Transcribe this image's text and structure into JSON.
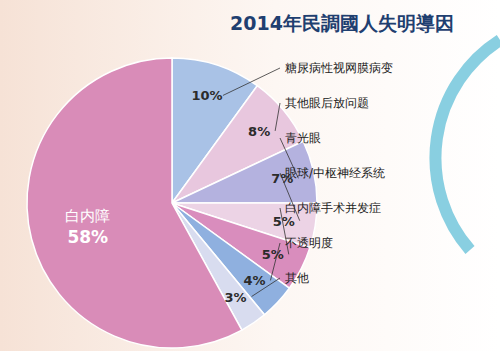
{
  "chart_data": {
    "type": "pie",
    "title": "2014年民調國人失明導因",
    "categories": [
      "糖尿病性视网膜病变",
      "其他眼后放问题",
      "青光眼",
      "眼球/中枢神经系统",
      "白内障手术并发症",
      "不透明度",
      "其他",
      "白内障"
    ],
    "values": [
      10,
      8,
      7,
      5,
      5,
      4,
      3,
      58
    ],
    "value_labels": [
      "10%",
      "8%",
      "7%",
      "5%",
      "5%",
      "4%",
      "3%",
      "58%"
    ],
    "colors": [
      "#a9c2e6",
      "#e8c7de",
      "#b4b2df",
      "#ecd3e5",
      "#d98dbd",
      "#8fb0df",
      "#d8dcef",
      "#d98cb8"
    ],
    "data_labels": true
  }
}
